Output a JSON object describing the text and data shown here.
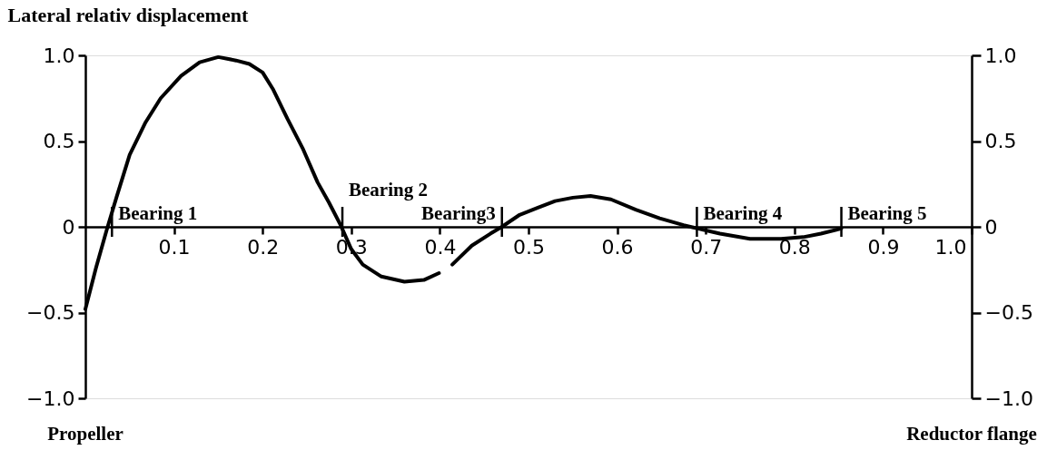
{
  "chart_data": {
    "type": "line",
    "ylabel": "Lateral relativ displacement",
    "annotations": [
      "Propeller",
      "Reductor flange"
    ],
    "x": [
      0,
      0.012,
      0.024,
      0.035,
      0.05,
      0.068,
      0.085,
      0.108,
      0.129,
      0.15,
      0.17,
      0.185,
      0.2,
      0.212,
      0.228,
      0.245,
      0.262,
      0.275,
      0.288,
      0.3,
      0.313,
      0.334,
      0.36,
      0.382,
      0.399,
      0.406,
      0.414,
      0.436,
      0.457,
      0.47,
      0.49,
      0.51,
      0.53,
      0.55,
      0.57,
      0.593,
      0.621,
      0.648,
      0.675,
      0.691,
      0.716,
      0.75,
      0.785,
      0.81,
      0.83,
      0.853
    ],
    "series": [
      {
        "color": "#000000",
        "values": [
          -0.48,
          -0.24,
          -0.02,
          0.17,
          0.42,
          0.61,
          0.75,
          0.88,
          0.96,
          0.99,
          0.97,
          0.95,
          0.9,
          0.8,
          0.63,
          0.46,
          0.26,
          0.14,
          0.01,
          -0.13,
          -0.22,
          -0.29,
          -0.32,
          -0.31,
          -0.27,
          null,
          -0.22,
          -0.11,
          -0.04,
          0.0,
          0.07,
          0.11,
          0.15,
          0.17,
          0.18,
          0.16,
          0.1,
          0.05,
          0.01,
          -0.01,
          -0.04,
          -0.07,
          -0.07,
          -0.06,
          -0.04,
          -0.01
        ]
      }
    ],
    "xlim": [
      0,
      1
    ],
    "xticks": [
      0.1,
      0.2,
      0.3,
      0.4,
      0.5,
      0.6,
      0.7,
      0.8,
      0.9,
      {
        "value": 1,
        "label": "1.0"
      }
    ],
    "ylim": [
      -1,
      1
    ],
    "yticks": [
      {
        "value": -1,
        "label": "−1.0"
      },
      {
        "value": -0.5,
        "label": "−0.5"
      },
      0,
      0.5,
      {
        "value": 1,
        "label": "1.0"
      }
    ],
    "y2lim": [
      -1,
      1
    ],
    "y2ticks": [
      {
        "value": -1,
        "label": "−1.0"
      },
      {
        "value": -0.5,
        "label": "−0.5"
      },
      0,
      0.5,
      {
        "value": 1,
        "label": "1.0"
      }
    ],
    "ref_lines": [
      {
        "axis": "x",
        "value": 0.03,
        "label": "Bearing 1"
      },
      {
        "axis": "x",
        "value": 0.29,
        "label": "Bearing 2"
      },
      {
        "axis": "x",
        "value": 0.47,
        "label": "Bearing3"
      },
      {
        "axis": "x",
        "value": 0.69,
        "label": "Bearing 4"
      },
      {
        "axis": "x",
        "value": 0.853,
        "label": "Bearing 5"
      }
    ]
  }
}
